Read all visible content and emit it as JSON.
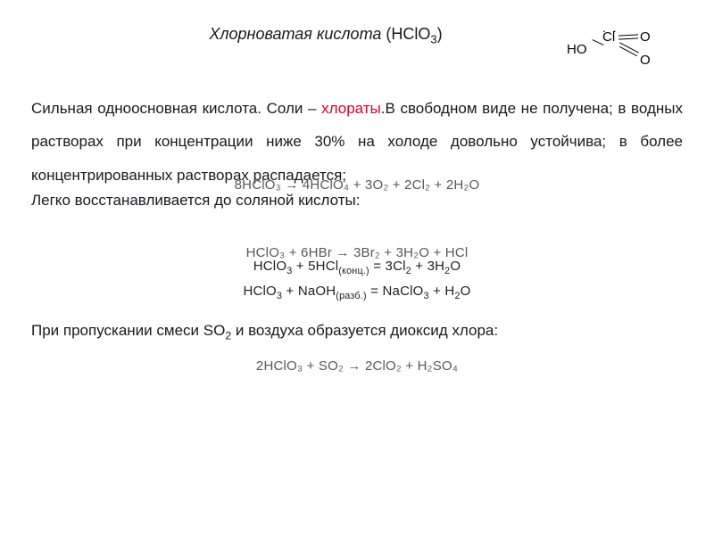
{
  "header": {
    "title": "Хлорноватая кислота",
    "formula_label": "(HClO",
    "formula_sub": "3",
    "formula_close": ")"
  },
  "corner": {
    "ho": "HO",
    "cl": "Cl",
    "o": "O"
  },
  "body": {
    "p1a": "Сильная одноосновная кислота. Соли – ",
    "p1_red": "хлораты",
    "p1b": ".В свободном виде не получена; в водных растворах при концентрации ниже 30% на холоде довольно устойчива; в более концентрированных растворах распадается;",
    "p2": "Легко восстанавливается до соляной кислоты:",
    "p3": "При пропускании смеси SO",
    "p3_sub": "2",
    "p3_tail": " и воздуха образуется диоксид хлора:"
  },
  "eq": {
    "e1": "8HClO₃ → 4HClO₄ + 3O₂ + 2Cl₂ + 2H₂O",
    "e2": "HClO₃ + 6HBr → 3Br₂ + 3H₂O + HCl",
    "e3a": "HClO",
    "e3sub1": "3",
    "e3b": " + 5HCl",
    "e3sub2": "(конц.)",
    "e3c": " = 3Cl",
    "e3sub3": "2",
    "e3d": " + 3H",
    "e3sub4": "2",
    "e3e": "O",
    "e4a": "HClO",
    "e4sub1": "3",
    "e4b": " + NaOH",
    "e4sub2": "(разб.)",
    "e4c": " = NaClO",
    "e4sub3": "3",
    "e4d": " + H",
    "e4sub4": "2",
    "e4e": "O",
    "e5": "2HClO₃ + SO₂ → 2ClO₂ + H₂SO₄"
  },
  "style": {
    "red": "#d6002a",
    "text": "#181820",
    "eq_gray": "#58585a",
    "bg": "#ffffff",
    "title_fontsize": 18,
    "body_fontsize": 17,
    "eq_fontsize": 15
  }
}
